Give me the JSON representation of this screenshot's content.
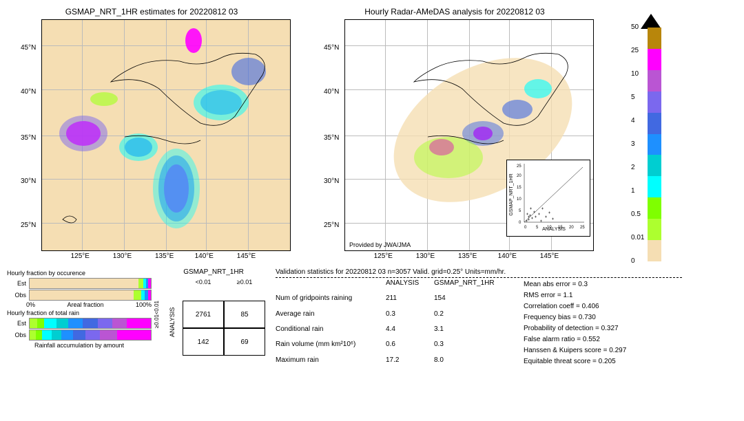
{
  "map1": {
    "title": "GSMAP_NRT_1HR estimates for 20220812 03",
    "background_color": "#f5deb3",
    "xticks": [
      "125°E",
      "130°E",
      "135°E",
      "140°E",
      "145°E"
    ],
    "yticks": [
      "25°N",
      "30°N",
      "35°N",
      "40°N",
      "45°N"
    ],
    "xlim": [
      120,
      150
    ],
    "ylim": [
      22,
      48
    ]
  },
  "map2": {
    "title": "Hourly Radar-AMeDAS analysis for 20220812 03",
    "xticks": [
      "125°E",
      "130°E",
      "135°E",
      "140°E",
      "145°E"
    ],
    "yticks": [
      "25°N",
      "30°N",
      "35°N",
      "40°N",
      "45°N"
    ],
    "provided": "Provided by JWA/JMA",
    "inset": {
      "xlabel": "ANALYSIS",
      "ylabel": "GSMAP_NRT_1HR",
      "xlim": [
        0,
        25
      ],
      "ylim": [
        0,
        25
      ],
      "xticks": [
        0,
        5,
        10,
        15,
        20,
        25
      ]
    }
  },
  "colorbar": {
    "ticks": [
      "50",
      "25",
      "10",
      "5",
      "4",
      "3",
      "2",
      "1",
      "0.5",
      "0.01",
      "0"
    ],
    "colors": [
      "#b8860b",
      "#ff00ff",
      "#ba55d3",
      "#7b68ee",
      "#4169e1",
      "#1e90ff",
      "#00ced1",
      "#00ffff",
      "#7fff00",
      "#adff2f",
      "#f5deb3"
    ],
    "arrow_color": "#000000"
  },
  "bars": {
    "occurrence": {
      "title": "Hourly fraction by occurence",
      "rows": [
        "Est",
        "Obs"
      ],
      "est_segs": [
        {
          "c": "#f5deb3",
          "w": 0.9
        },
        {
          "c": "#adff2f",
          "w": 0.04
        },
        {
          "c": "#00ffff",
          "w": 0.02
        },
        {
          "c": "#1e90ff",
          "w": 0.02
        },
        {
          "c": "#ff00ff",
          "w": 0.02
        }
      ],
      "obs_segs": [
        {
          "c": "#f5deb3",
          "w": 0.86
        },
        {
          "c": "#adff2f",
          "w": 0.06
        },
        {
          "c": "#00ffff",
          "w": 0.03
        },
        {
          "c": "#1e90ff",
          "w": 0.03
        },
        {
          "c": "#ff00ff",
          "w": 0.02
        }
      ],
      "xaxis": [
        "0%",
        "Areal fraction",
        "100%"
      ]
    },
    "total_rain": {
      "title": "Hourly fraction of total rain",
      "rows": [
        "Est",
        "Obs"
      ],
      "est_segs": [
        {
          "c": "#adff2f",
          "w": 0.06
        },
        {
          "c": "#7fff00",
          "w": 0.06
        },
        {
          "c": "#00ffff",
          "w": 0.1
        },
        {
          "c": "#00ced1",
          "w": 0.1
        },
        {
          "c": "#1e90ff",
          "w": 0.12
        },
        {
          "c": "#4169e1",
          "w": 0.12
        },
        {
          "c": "#7b68ee",
          "w": 0.12
        },
        {
          "c": "#ba55d3",
          "w": 0.12
        },
        {
          "c": "#ff00ff",
          "w": 0.2
        }
      ],
      "obs_segs": [
        {
          "c": "#adff2f",
          "w": 0.05
        },
        {
          "c": "#7fff00",
          "w": 0.05
        },
        {
          "c": "#00ffff",
          "w": 0.08
        },
        {
          "c": "#00ced1",
          "w": 0.08
        },
        {
          "c": "#1e90ff",
          "w": 0.1
        },
        {
          "c": "#4169e1",
          "w": 0.1
        },
        {
          "c": "#7b68ee",
          "w": 0.12
        },
        {
          "c": "#ba55d3",
          "w": 0.14
        },
        {
          "c": "#ff00ff",
          "w": 0.28
        }
      ]
    },
    "footer": "Rainfall accumulation by amount"
  },
  "confusion": {
    "title": "GSMAP_NRT_1HR",
    "col_headers": [
      "<0.01",
      "≥0.01"
    ],
    "row_headers": [
      "<0.01",
      "≥0.01"
    ],
    "y_axis": "ANALYSIS",
    "cells": [
      [
        "2761",
        "85"
      ],
      [
        "142",
        "69"
      ]
    ]
  },
  "validation": {
    "title": "Validation statistics for 20220812 03  n=3057 Valid. grid=0.25°  Units=mm/hr.",
    "header_cols": [
      "ANALYSIS",
      "GSMAP_NRT_1HR"
    ],
    "rows": [
      {
        "label": "Num of gridpoints raining",
        "a": "211",
        "b": "154"
      },
      {
        "label": "Average rain",
        "a": "0.3",
        "b": "0.2"
      },
      {
        "label": "Conditional rain",
        "a": "4.4",
        "b": "3.1"
      },
      {
        "label": "Rain volume (mm km²10⁶)",
        "a": "0.6",
        "b": "0.3"
      },
      {
        "label": "Maximum rain",
        "a": "17.2",
        "b": "8.0"
      }
    ],
    "stats": [
      {
        "label": "Mean abs error =",
        "v": "0.3"
      },
      {
        "label": "RMS error =",
        "v": "1.1"
      },
      {
        "label": "Correlation coeff =",
        "v": "0.406"
      },
      {
        "label": "Frequency bias =",
        "v": "0.730"
      },
      {
        "label": "Probability of detection =",
        "v": "0.327"
      },
      {
        "label": "False alarm ratio =",
        "v": "0.552"
      },
      {
        "label": "Hanssen & Kuipers score =",
        "v": "0.297"
      },
      {
        "label": "Equitable threat score =",
        "v": "0.205"
      }
    ]
  }
}
